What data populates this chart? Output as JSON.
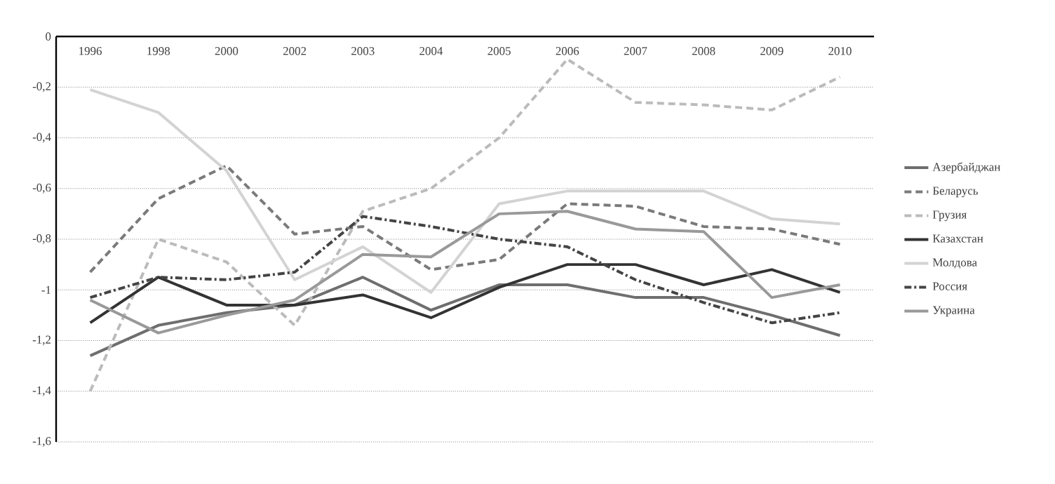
{
  "chart_data": {
    "type": "line",
    "categories": [
      "1996",
      "1998",
      "2000",
      "2002",
      "2003",
      "2004",
      "2005",
      "2006",
      "2007",
      "2008",
      "2009",
      "2010"
    ],
    "ylim": [
      -1.6,
      0
    ],
    "yticks": [
      0,
      {
        "value": -0.2,
        "label": "-0,2"
      },
      {
        "value": -0.4,
        "label": "-0,4"
      },
      {
        "value": -0.6,
        "label": "-0,6"
      },
      {
        "value": -0.8,
        "label": "-0,8"
      },
      -1,
      {
        "value": -1.2,
        "label": "-1,2"
      },
      {
        "value": -1.4,
        "label": "-1,4"
      },
      {
        "value": -1.6,
        "label": "-1,6"
      }
    ],
    "grid": "y",
    "legend": "right",
    "marker": "none",
    "series": [
      {
        "name": "Азербайджан",
        "color": "#6e6e6e",
        "line_style": "solid",
        "values": [
          -1.26,
          -1.14,
          -1.09,
          -1.06,
          -0.95,
          -1.08,
          -0.98,
          -0.98,
          -1.03,
          -1.03,
          -1.1,
          -1.18
        ]
      },
      {
        "name": "Беларусь",
        "color": "#7a7a7a",
        "line_style": "dashed",
        "values": [
          -0.93,
          -0.64,
          -0.51,
          -0.78,
          -0.75,
          -0.92,
          -0.88,
          -0.66,
          -0.67,
          -0.75,
          -0.76,
          -0.82
        ]
      },
      {
        "name": "Грузия",
        "color": "#bbbbbb",
        "line_style": "dashed",
        "values": [
          -1.4,
          -0.8,
          -0.89,
          -1.14,
          -0.69,
          -0.6,
          -0.4,
          -0.09,
          -0.26,
          -0.27,
          -0.29,
          -0.16
        ]
      },
      {
        "name": "Казахстан",
        "color": "#333333",
        "line_style": "solid",
        "values": [
          -1.13,
          -0.95,
          -1.06,
          -1.06,
          -1.02,
          -1.11,
          -0.99,
          -0.9,
          -0.9,
          -0.98,
          -0.92,
          -1.01
        ]
      },
      {
        "name": "Молдова",
        "color": "#d3d3d3",
        "line_style": "solid",
        "values": [
          -0.21,
          -0.3,
          -0.53,
          -0.96,
          -0.83,
          -1.01,
          -0.66,
          -0.61,
          -0.61,
          -0.61,
          -0.72,
          -0.74
        ]
      },
      {
        "name": "Россия",
        "color": "#444444",
        "line_style": "dashdot",
        "values": [
          -1.03,
          -0.95,
          -0.96,
          -0.93,
          -0.71,
          -0.75,
          -0.8,
          -0.83,
          -0.96,
          -1.05,
          -1.13,
          -1.09
        ]
      },
      {
        "name": "Украина",
        "color": "#999999",
        "line_style": "solid",
        "values": [
          -1.04,
          -1.17,
          -1.1,
          -1.04,
          -0.86,
          -0.87,
          -0.7,
          -0.69,
          -0.76,
          -0.77,
          -1.03,
          -0.98
        ]
      }
    ]
  }
}
